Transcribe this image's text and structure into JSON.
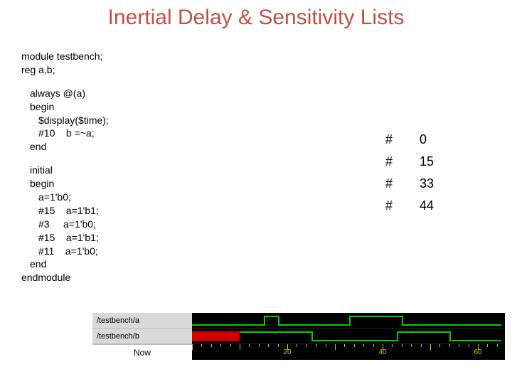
{
  "title": "Inertial Delay & Sensitivity Lists",
  "code": {
    "l1": "module testbench;",
    "l2": "reg a,b;",
    "l3": "always @(a)",
    "l4": "begin",
    "l5": "$display($time);",
    "l6": "#10    b =~a;",
    "l7": "end",
    "l8": "initial",
    "l9": "begin",
    "l10": "a=1'b0;",
    "l11": "#15    a=1'b1;",
    "l12": "#3     a=1'b0;",
    "l13": "#15    a=1'b1;",
    "l14": "#11    a=1'b0;",
    "l15": "end",
    "l16": "endmodule"
  },
  "output": {
    "rows": [
      {
        "c1": "#",
        "c2": "0"
      },
      {
        "c1": "#",
        "c2": "15"
      },
      {
        "c1": "#",
        "c2": "33"
      },
      {
        "c1": "#",
        "c2": "44"
      }
    ]
  },
  "waveform": {
    "labels": {
      "a": "/testbench/a",
      "b": "/testbench/b",
      "now": "Now"
    },
    "time_labels": {
      "t20": "20",
      "t40": "40",
      "t60": "60"
    },
    "scale": 6.7,
    "signal_a": {
      "segments": [
        {
          "t0": 0,
          "t1": 15,
          "v": 0
        },
        {
          "t0": 15,
          "t1": 18,
          "v": 1
        },
        {
          "t0": 18,
          "t1": 33,
          "v": 0
        },
        {
          "t0": 33,
          "t1": 44,
          "v": 1
        },
        {
          "t0": 44,
          "t1": 65,
          "v": 0
        }
      ],
      "color": "#00d000"
    },
    "signal_b": {
      "red_until": 10,
      "segments": [
        {
          "t0": 10,
          "t1": 25,
          "v": 1
        },
        {
          "t0": 25,
          "t1": 43,
          "v": 0
        },
        {
          "t0": 43,
          "t1": 54,
          "v": 1
        },
        {
          "t0": 54,
          "t1": 65,
          "v": 0
        }
      ],
      "color": "#00d000"
    }
  }
}
